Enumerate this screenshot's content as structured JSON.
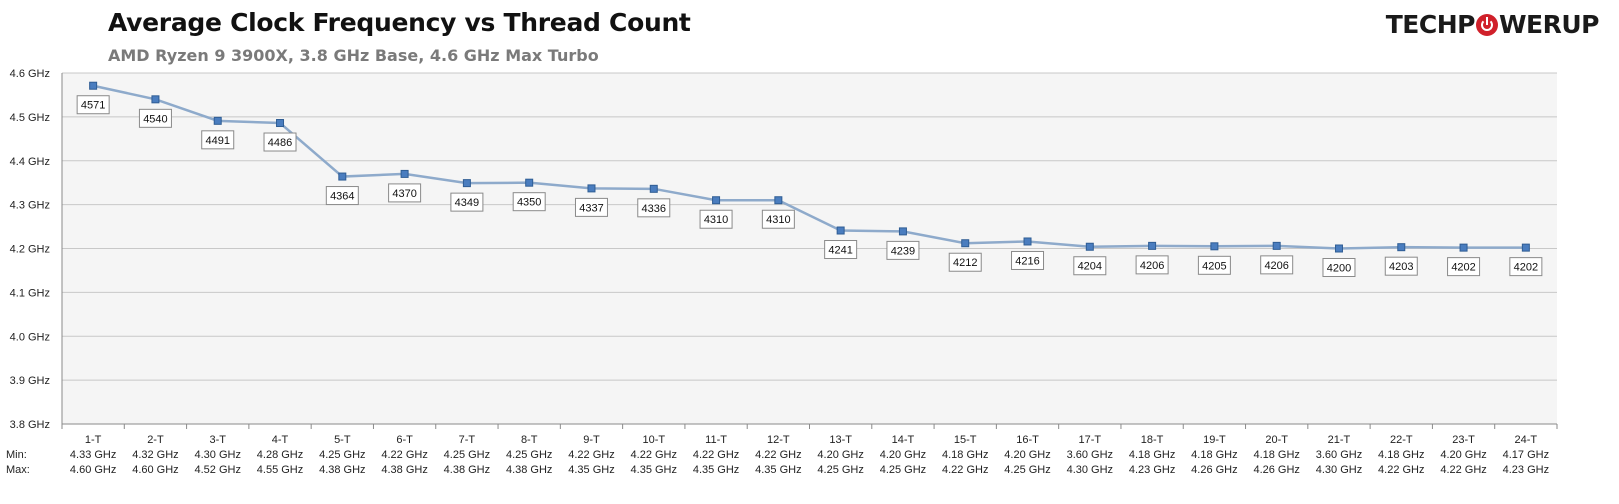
{
  "header": {
    "title": "Average Clock Frequency vs Thread Count",
    "subtitle": "AMD Ryzen 9 3900X, 3.8 GHz Base, 4.6 GHz Max Turbo",
    "logo_left": "TECHP",
    "logo_right": "WERUP"
  },
  "row_labels": {
    "min": "Min:",
    "max": "Max:"
  },
  "colors": {
    "line": "#8eaacb",
    "marker": "#4a7dbf",
    "marker_stroke": "#2f5d94",
    "grid": "#c8c8c8",
    "plot_bg": "#f5f5f5"
  },
  "chart_data": {
    "type": "line",
    "title": "Average Clock Frequency vs Thread Count",
    "subtitle": "AMD Ryzen 9 3900X, 3.8 GHz Base, 4.6 GHz Max Turbo",
    "categories": [
      "1-T",
      "2-T",
      "3-T",
      "4-T",
      "5-T",
      "6-T",
      "7-T",
      "8-T",
      "9-T",
      "10-T",
      "11-T",
      "12-T",
      "13-T",
      "14-T",
      "15-T",
      "16-T",
      "17-T",
      "18-T",
      "19-T",
      "20-T",
      "21-T",
      "22-T",
      "23-T",
      "24-T"
    ],
    "values": [
      4571,
      4540,
      4491,
      4486,
      4364,
      4370,
      4349,
      4350,
      4337,
      4336,
      4310,
      4310,
      4241,
      4239,
      4212,
      4216,
      4204,
      4206,
      4205,
      4206,
      4200,
      4203,
      4202,
      4202
    ],
    "value_labels": [
      "4571",
      "4540",
      "4491",
      "4486",
      "4364",
      "4370",
      "4349",
      "4350",
      "4337",
      "4336",
      "4310",
      "4310",
      "4241",
      "4239",
      "4212",
      "4216",
      "4204",
      "4206",
      "4205",
      "4206",
      "4200",
      "4203",
      "4202",
      "4202"
    ],
    "min": [
      "4.33 GHz",
      "4.32 GHz",
      "4.30 GHz",
      "4.28 GHz",
      "4.25 GHz",
      "4.22 GHz",
      "4.25 GHz",
      "4.25 GHz",
      "4.22 GHz",
      "4.22 GHz",
      "4.22 GHz",
      "4.22 GHz",
      "4.20 GHz",
      "4.20 GHz",
      "4.18 GHz",
      "4.20 GHz",
      "3.60 GHz",
      "4.18 GHz",
      "4.18 GHz",
      "4.18 GHz",
      "3.60 GHz",
      "4.18 GHz",
      "4.20 GHz",
      "4.17 GHz"
    ],
    "max": [
      "4.60 GHz",
      "4.60 GHz",
      "4.52 GHz",
      "4.55 GHz",
      "4.38 GHz",
      "4.38 GHz",
      "4.38 GHz",
      "4.38 GHz",
      "4.35 GHz",
      "4.35 GHz",
      "4.35 GHz",
      "4.35 GHz",
      "4.25 GHz",
      "4.25 GHz",
      "4.22 GHz",
      "4.25 GHz",
      "4.30 GHz",
      "4.23 GHz",
      "4.26 GHz",
      "4.26 GHz",
      "4.30 GHz",
      "4.22 GHz",
      "4.22 GHz",
      "4.23 GHz"
    ],
    "yticks": [
      3800,
      3900,
      4000,
      4100,
      4200,
      4300,
      4400,
      4500,
      4600
    ],
    "ytick_labels": [
      "3.8 GHz",
      "3.9 GHz",
      "4.0 GHz",
      "4.1 GHz",
      "4.2 GHz",
      "4.3 GHz",
      "4.4 GHz",
      "4.5 GHz",
      "4.6 GHz"
    ],
    "ylim": [
      3800,
      4600
    ],
    "grid": true,
    "legend": "none"
  }
}
